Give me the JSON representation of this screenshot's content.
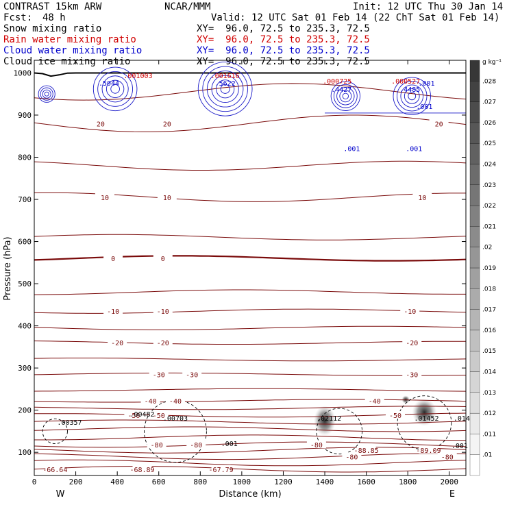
{
  "header": {
    "model": "CONTRAST 15km ARW",
    "center": "NCAR/MMM",
    "init": "Init: 12 UTC Thu 30 Jan 14",
    "fcst_label": "Fcst:",
    "fcst_value": "48 h",
    "valid": "Valid: 12 UTC Sat 01 Feb 14 (22 ChT Sat 01 Feb 14)"
  },
  "fields": [
    {
      "name": "Snow mixing ratio",
      "xy": "XY=  96.0, 72.5 to 235.3, 72.5",
      "color": "#000000"
    },
    {
      "name": "Rain water mixing ratio",
      "xy": "XY=  96.0, 72.5 to 235.3, 72.5",
      "color": "#d00000"
    },
    {
      "name": "Cloud water mixing ratio",
      "xy": "XY=  96.0, 72.5 to 235.3, 72.5",
      "color": "#0000cc"
    },
    {
      "name": "Cloud ice mixing ratio",
      "xy": "XY=  96.0, 72.5 to 235.3, 72.5",
      "color": "#000000"
    }
  ],
  "chart_data": {
    "type": "contour",
    "xlabel": "Distance (km)",
    "ylabel": "Pressure (hPa)",
    "xlim": [
      0,
      2080
    ],
    "ylim": [
      1030,
      45
    ],
    "x_ticks": [
      0,
      200,
      400,
      600,
      800,
      1000,
      1200,
      1400,
      1600,
      1800,
      2000
    ],
    "y_ticks": [
      100,
      200,
      300,
      400,
      500,
      600,
      700,
      800,
      900,
      1000
    ],
    "x_end_labels": {
      "left": "W",
      "right": "E"
    },
    "temperature_contours": [
      {
        "value": -60,
        "p": 60,
        "labels": [
          {
            "x": 100,
            "text": "-66.64"
          },
          {
            "x": 520,
            "text": "-68.89"
          },
          {
            "x": 900,
            "text": "-67.79"
          }
        ]
      },
      {
        "value": -70,
        "p": 75,
        "labels": []
      },
      {
        "value": -80,
        "p": 90,
        "labels": [
          {
            "x": 1530,
            "text": "-80"
          },
          {
            "x": 1990,
            "text": "-80"
          }
        ]
      },
      {
        "value": -85,
        "p": 105,
        "labels": [
          {
            "x": 1600,
            "text": "-88.85"
          },
          {
            "x": 1900,
            "text": "-89.09"
          }
        ]
      },
      {
        "value": -80,
        "p": 118,
        "labels": [
          {
            "x": 590,
            "text": "-80"
          },
          {
            "x": 780,
            "text": "-80"
          },
          {
            "x": 1360,
            "text": "-80"
          }
        ]
      },
      {
        "value": -70,
        "p": 135,
        "labels": []
      },
      {
        "value": -60,
        "p": 155,
        "labels": []
      },
      {
        "value": -55,
        "p": 172,
        "labels": []
      },
      {
        "value": -50,
        "p": 188,
        "labels": [
          {
            "x": 480,
            "text": "-50"
          },
          {
            "x": 600,
            "text": "-50"
          },
          {
            "x": 1740,
            "text": "-50"
          }
        ]
      },
      {
        "value": -45,
        "p": 205,
        "labels": []
      },
      {
        "value": -40,
        "p": 222,
        "labels": [
          {
            "x": 560,
            "text": "-40"
          },
          {
            "x": 680,
            "text": "-40"
          },
          {
            "x": 1640,
            "text": "-40"
          }
        ]
      },
      {
        "value": -35,
        "p": 248,
        "labels": []
      },
      {
        "value": -30,
        "p": 285,
        "labels": [
          {
            "x": 600,
            "text": "-30"
          },
          {
            "x": 760,
            "text": "-30"
          },
          {
            "x": 1820,
            "text": "-30"
          }
        ]
      },
      {
        "value": -25,
        "p": 320,
        "labels": []
      },
      {
        "value": -20,
        "p": 360,
        "labels": [
          {
            "x": 400,
            "text": "-20"
          },
          {
            "x": 620,
            "text": "-20"
          },
          {
            "x": 1820,
            "text": "-20"
          }
        ]
      },
      {
        "value": -15,
        "p": 395,
        "labels": []
      },
      {
        "value": -10,
        "p": 435,
        "labels": [
          {
            "x": 380,
            "text": "-10"
          },
          {
            "x": 620,
            "text": "-10"
          },
          {
            "x": 1810,
            "text": "-10"
          }
        ]
      },
      {
        "value": -5,
        "p": 480,
        "labels": []
      },
      {
        "value": 0,
        "p": 560,
        "labels": [
          {
            "x": 380,
            "text": "0"
          },
          {
            "x": 620,
            "text": "0"
          }
        ]
      },
      {
        "value": 5,
        "p": 610,
        "labels": []
      },
      {
        "value": 10,
        "p": 705,
        "labels": [
          {
            "x": 340,
            "text": "10"
          },
          {
            "x": 640,
            "text": "10"
          },
          {
            "x": 1870,
            "text": "10"
          }
        ]
      },
      {
        "value": 15,
        "p": 780,
        "labels": []
      },
      {
        "value": 20,
        "p": 880,
        "labels": [
          {
            "x": 320,
            "text": "20"
          },
          {
            "x": 640,
            "text": "20"
          },
          {
            "x": 1950,
            "text": "20"
          }
        ]
      },
      {
        "value": 25,
        "p": 955,
        "labels": []
      }
    ],
    "surface": {
      "p": 1000
    },
    "maxima_labels": [
      {
        "x": 170,
        "p": 165,
        "text": ".00357",
        "color": "#000000"
      },
      {
        "x": 520,
        "p": 185,
        "text": ".00482",
        "color": "#000000"
      },
      {
        "x": 680,
        "p": 175,
        "text": ".00703",
        "color": "#000000"
      },
      {
        "x": 940,
        "p": 115,
        "text": ".001",
        "color": "#000000"
      },
      {
        "x": 1420,
        "p": 175,
        "text": ".02112",
        "color": "#000000"
      },
      {
        "x": 1890,
        "p": 175,
        "text": ".01452",
        "color": "#000000"
      },
      {
        "x": 2060,
        "p": 175,
        "text": ".014",
        "color": "#000000"
      },
      {
        "x": 2050,
        "p": 110,
        "text": ".001",
        "color": "#000000"
      },
      {
        "x": 360,
        "p": 970,
        "text": ".5044",
        "color": "#0000cc"
      },
      {
        "x": 920,
        "p": 970,
        "text": ".5622",
        "color": "#0000cc"
      },
      {
        "x": 1480,
        "p": 955,
        "text": ".4427",
        "color": "#0000cc"
      },
      {
        "x": 1810,
        "p": 955,
        "text": ".4485",
        "color": "#0000cc"
      },
      {
        "x": 1880,
        "p": 915,
        "text": ".001",
        "color": "#0000cc"
      },
      {
        "x": 1890,
        "p": 970,
        "text": ".001",
        "color": "#0000cc"
      },
      {
        "x": 1530,
        "p": 815,
        "text": ".001",
        "color": "#0000cc"
      },
      {
        "x": 1830,
        "p": 815,
        "text": ".001",
        "color": "#0000cc"
      },
      {
        "x": 500,
        "p": 988,
        "text": ".001003",
        "color": "#d00000"
      },
      {
        "x": 920,
        "p": 988,
        "text": ".001616",
        "color": "#d00000"
      },
      {
        "x": 1460,
        "p": 975,
        "text": ".000725",
        "color": "#d00000"
      },
      {
        "x": 1790,
        "p": 975,
        "text": ".000527",
        "color": "#d00000"
      }
    ],
    "colorbar": {
      "unit": "g kg⁻¹",
      "labels": [
        ".01",
        ".011",
        ".012",
        ".013",
        ".014",
        ".015",
        ".016",
        ".017",
        ".018",
        ".019",
        ".02",
        ".021",
        ".022",
        ".023",
        ".024",
        ".025",
        ".026",
        ".027",
        ".028"
      ]
    }
  }
}
